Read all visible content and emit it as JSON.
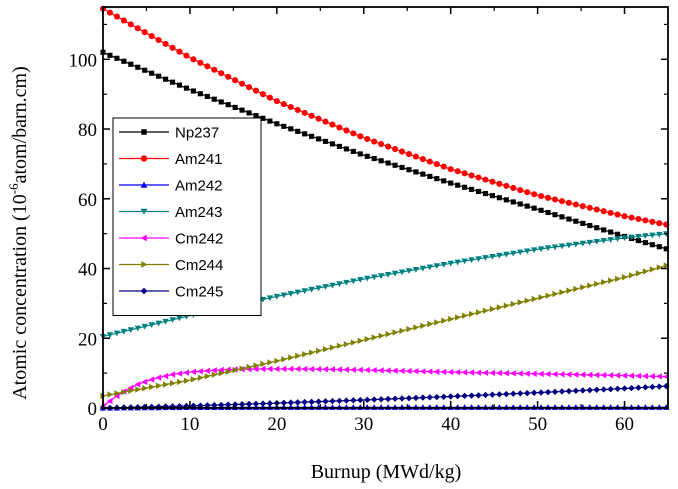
{
  "chart_data": {
    "type": "line",
    "xlabel": "Burnup (MWd/kg)",
    "ylabel_main": "Atomic concentration (10",
    "ylabel_exp": "-6",
    "ylabel_rest": "atom/barn.cm)",
    "xlim": [
      0,
      65
    ],
    "ylim": [
      0,
      115
    ],
    "x_ticks": [
      0,
      10,
      20,
      30,
      40,
      50,
      60
    ],
    "y_ticks": [
      0,
      20,
      40,
      60,
      80,
      100
    ],
    "grid": false,
    "legend_position": "left",
    "series": [
      {
        "name": "Np237",
        "color": "#000000",
        "marker": "square",
        "x": [
          0,
          10,
          20,
          30,
          40,
          50,
          60,
          65
        ],
        "values": [
          102,
          91.3,
          81.5,
          72.5,
          64.5,
          57.0,
          49.2,
          45.5
        ]
      },
      {
        "name": "Am241",
        "color": "#ff0000",
        "marker": "circle",
        "x": [
          0,
          10,
          20,
          30,
          40,
          50,
          60,
          65
        ],
        "values": [
          114.5,
          100.5,
          88.0,
          77.5,
          68.5,
          61.0,
          55.0,
          52.5
        ]
      },
      {
        "name": "Am242",
        "color": "#0000ff",
        "marker": "triangle-up",
        "x": [
          0,
          10,
          20,
          30,
          40,
          50,
          60,
          65
        ],
        "values": [
          0,
          0.15,
          0.2,
          0.2,
          0.2,
          0.2,
          0.2,
          0.2
        ]
      },
      {
        "name": "Am243",
        "color": "#008080",
        "marker": "triangle-down",
        "x": [
          0,
          10,
          20,
          30,
          40,
          50,
          60,
          65
        ],
        "values": [
          20.5,
          26.5,
          32.0,
          37.0,
          41.5,
          45.5,
          48.8,
          50.0
        ]
      },
      {
        "name": "Cm242",
        "color": "#ff00ff",
        "marker": "triangle-left",
        "x": [
          0,
          2,
          4,
          6,
          8,
          10,
          14,
          18,
          22,
          26,
          30,
          40,
          50,
          60,
          65
        ],
        "values": [
          0.5,
          4.2,
          6.8,
          8.5,
          9.6,
          10.3,
          11.0,
          11.2,
          11.2,
          11.1,
          10.9,
          10.3,
          9.8,
          9.3,
          9.0
        ]
      },
      {
        "name": "Cm244",
        "color": "#808000",
        "marker": "triangle-right",
        "x": [
          0,
          10,
          20,
          30,
          40,
          50,
          60,
          65
        ],
        "values": [
          3.5,
          8.0,
          13.5,
          19.5,
          25.5,
          31.5,
          37.5,
          41.0
        ]
      },
      {
        "name": "Cm245",
        "color": "#000080",
        "marker": "diamond",
        "x": [
          0,
          10,
          20,
          30,
          40,
          50,
          60,
          65
        ],
        "values": [
          0,
          0.6,
          1.4,
          2.3,
          3.3,
          4.4,
          5.6,
          6.3
        ]
      }
    ]
  }
}
